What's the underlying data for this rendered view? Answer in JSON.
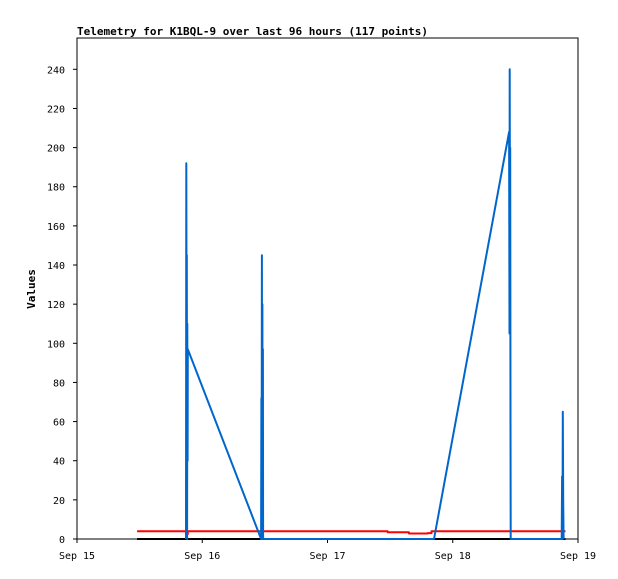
{
  "chart_data": {
    "type": "line",
    "title": "Telemetry for K1BQL-9 over last 96 hours (117 points)",
    "xlabel": "",
    "ylabel": "Values",
    "x_ticks": [
      "Sep 15",
      "Sep 16",
      "Sep 17",
      "Sep 18",
      "Sep 19"
    ],
    "y_ticks": [
      0,
      20,
      40,
      60,
      80,
      100,
      120,
      140,
      160,
      180,
      200,
      220,
      240
    ],
    "xlim": [
      0,
      4
    ],
    "ylim": [
      0,
      256
    ],
    "grid": false,
    "x_unit_note": "days",
    "series": [
      {
        "color": "#000000",
        "x": [
          0.48,
          3.9
        ],
        "y": [
          0,
          0
        ]
      },
      {
        "color": "#ff0000",
        "x": [
          0.48,
          0.87,
          0.87,
          0.885,
          0.885,
          2.48,
          2.48,
          2.65,
          2.65,
          2.8,
          2.8,
          2.83,
          2.83,
          3.9
        ],
        "y": [
          4,
          4,
          2.5,
          2.5,
          4,
          4,
          3.5,
          3.5,
          2.8,
          2.8,
          3,
          3,
          4,
          4
        ]
      },
      {
        "color": "#0066cc",
        "x": [
          0.87,
          0.873,
          0.875,
          0.877,
          0.879,
          0.881,
          0.883,
          0.885,
          1.47,
          1.472,
          1.474,
          1.476,
          1.478,
          1.48,
          1.482,
          1.484,
          1.486,
          2.85,
          3.45,
          3.453,
          3.455,
          3.457,
          3.459,
          3.461,
          3.463,
          3.87,
          3.873,
          3.876,
          3.879,
          3.882,
          3.885
        ],
        "y": [
          0,
          192,
          100,
          145,
          0,
          110,
          40,
          97,
          0,
          72,
          0,
          145,
          15,
          120,
          0,
          97,
          0,
          0,
          208,
          105,
          240,
          140,
          200,
          60,
          0,
          0,
          32,
          0,
          65,
          20,
          0
        ]
      }
    ]
  }
}
